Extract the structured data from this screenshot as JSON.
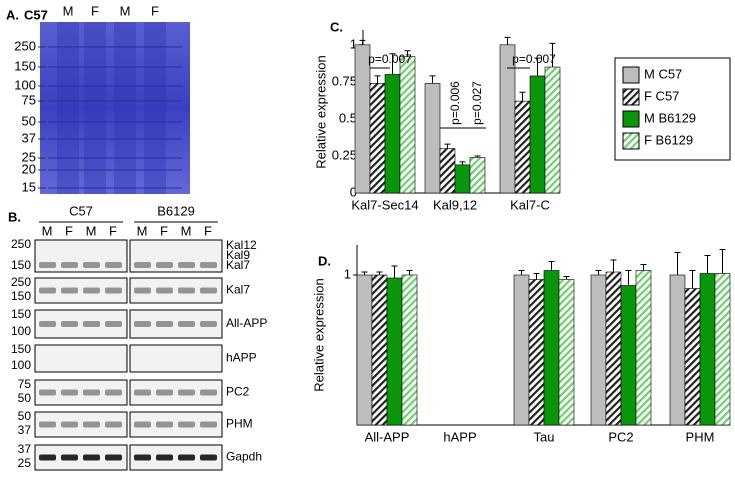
{
  "panel_a": {
    "label": "A.",
    "strain": "C57",
    "lanes": [
      "M",
      "F",
      "M",
      "F"
    ],
    "markers": [
      250,
      150,
      100,
      75,
      50,
      37,
      25,
      20,
      15
    ]
  },
  "panel_b": {
    "label": "B.",
    "groups": [
      {
        "name": "C57",
        "lanes": [
          "M",
          "F",
          "M",
          "F"
        ]
      },
      {
        "name": "B6129",
        "lanes": [
          "M",
          "F",
          "M",
          "F"
        ]
      }
    ],
    "rows": [
      {
        "markers": [
          250,
          150
        ],
        "labels": [
          "Kal12",
          "Kal9",
          "Kal7"
        ]
      },
      {
        "markers": [
          250,
          150
        ],
        "labels": [
          "Kal7"
        ]
      },
      {
        "markers": [
          150,
          100
        ],
        "labels": [
          "All-APP"
        ]
      },
      {
        "markers": [
          150,
          100
        ],
        "labels": [
          "hAPP"
        ]
      },
      {
        "markers": [
          75,
          50
        ],
        "labels": [
          "PC2"
        ]
      },
      {
        "markers": [
          50,
          37
        ],
        "labels": [
          "PHM"
        ]
      },
      {
        "markers": [
          37,
          25
        ],
        "labels": [
          "Gapdh"
        ]
      }
    ]
  },
  "chart_data": [
    {
      "type": "bar",
      "panel_label": "C.",
      "y_label": "Relative expression",
      "categories": [
        "Kal7-Sec14",
        "Kal9,12",
        "Kal7-C"
      ],
      "series": [
        {
          "name": "M C57",
          "color": "#bdbdbd",
          "hatch": false,
          "values": [
            1.0,
            0.74,
            1.0
          ],
          "errors": [
            0.03,
            0.05,
            0.05
          ]
        },
        {
          "name": "F C57",
          "color": "#222222",
          "hatch": true,
          "values": [
            0.74,
            0.3,
            0.62
          ],
          "errors": [
            0.05,
            0.03,
            0.06
          ]
        },
        {
          "name": "M B6129",
          "color": "#0a960a",
          "hatch": false,
          "values": [
            0.8,
            0.19,
            0.79
          ],
          "errors": [
            0.14,
            0.02,
            0.12
          ]
        },
        {
          "name": "F B6129",
          "color": "#6fcf6f",
          "hatch": true,
          "values": [
            0.92,
            0.24,
            0.85
          ],
          "errors": [
            0.04,
            0.01,
            0.16
          ]
        }
      ],
      "annotations": [
        "p=0.007",
        "p=0.006",
        "p=0.027",
        "p=0.007"
      ],
      "ylim": [
        0,
        1.1
      ],
      "yticks": [
        0,
        0.25,
        0.5,
        0.75,
        1
      ],
      "legend": "right"
    },
    {
      "type": "bar",
      "panel_label": "D.",
      "y_label": "Relative expression",
      "categories": [
        "All-APP",
        "hAPP",
        "Tau",
        "PC2",
        "PHM"
      ],
      "series": [
        {
          "name": "M C57",
          "color": "#bdbdbd",
          "hatch": false,
          "values": [
            1.0,
            null,
            1.0,
            1.0,
            1.0
          ],
          "errors": [
            0.02,
            null,
            0.03,
            0.03,
            0.15
          ]
        },
        {
          "name": "F C57",
          "color": "#222222",
          "hatch": true,
          "values": [
            1.0,
            null,
            0.97,
            1.02,
            0.91
          ],
          "errors": [
            0.02,
            null,
            0.04,
            0.08,
            0.12
          ]
        },
        {
          "name": "M B6129",
          "color": "#0a960a",
          "hatch": false,
          "values": [
            0.98,
            null,
            1.03,
            0.93,
            1.01
          ],
          "errors": [
            0.08,
            null,
            0.06,
            0.1,
            0.12
          ]
        },
        {
          "name": "F B6129",
          "color": "#6fcf6f",
          "hatch": true,
          "values": [
            1.0,
            null,
            0.97,
            1.03,
            1.01
          ],
          "errors": [
            0.03,
            null,
            0.02,
            0.04,
            0.16
          ]
        }
      ],
      "ylim": [
        0,
        1.2
      ],
      "yticks": [
        1
      ]
    }
  ]
}
